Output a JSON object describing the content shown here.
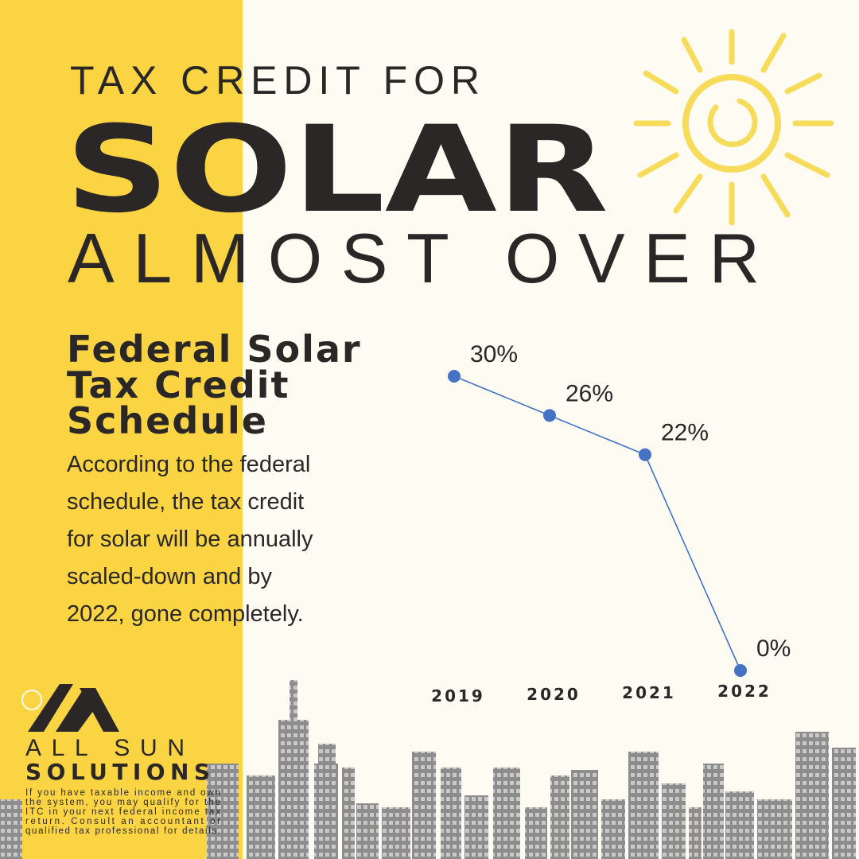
{
  "header": {
    "line1": "TAX CREDIT FOR",
    "line2": "SOLAR",
    "line3": "ALMOST OVER"
  },
  "section": {
    "title_lines": [
      "Federal Solar",
      "Tax Credit",
      "Schedule"
    ],
    "body_lines": [
      "According to the federal",
      "schedule, the tax credit",
      "for solar will be annually",
      "scaled-down and by",
      "2022, gone completely."
    ]
  },
  "chart_data": {
    "type": "line",
    "categories": [
      "2019",
      "2020",
      "2021",
      "2022"
    ],
    "values": [
      30,
      26,
      22,
      0
    ],
    "value_labels": [
      "30%",
      "26%",
      "22%",
      "0%"
    ],
    "color": "#4472c4"
  },
  "logo": {
    "line1": "ALL SUN",
    "line2": "SOLUTIONS"
  },
  "disclaimer_lines": [
    "If you have taxable income and own",
    "the system, you may qualify for the",
    "ITC in your next federal income tax",
    "return. Consult an accountant or",
    "qualified tax professional for details."
  ]
}
